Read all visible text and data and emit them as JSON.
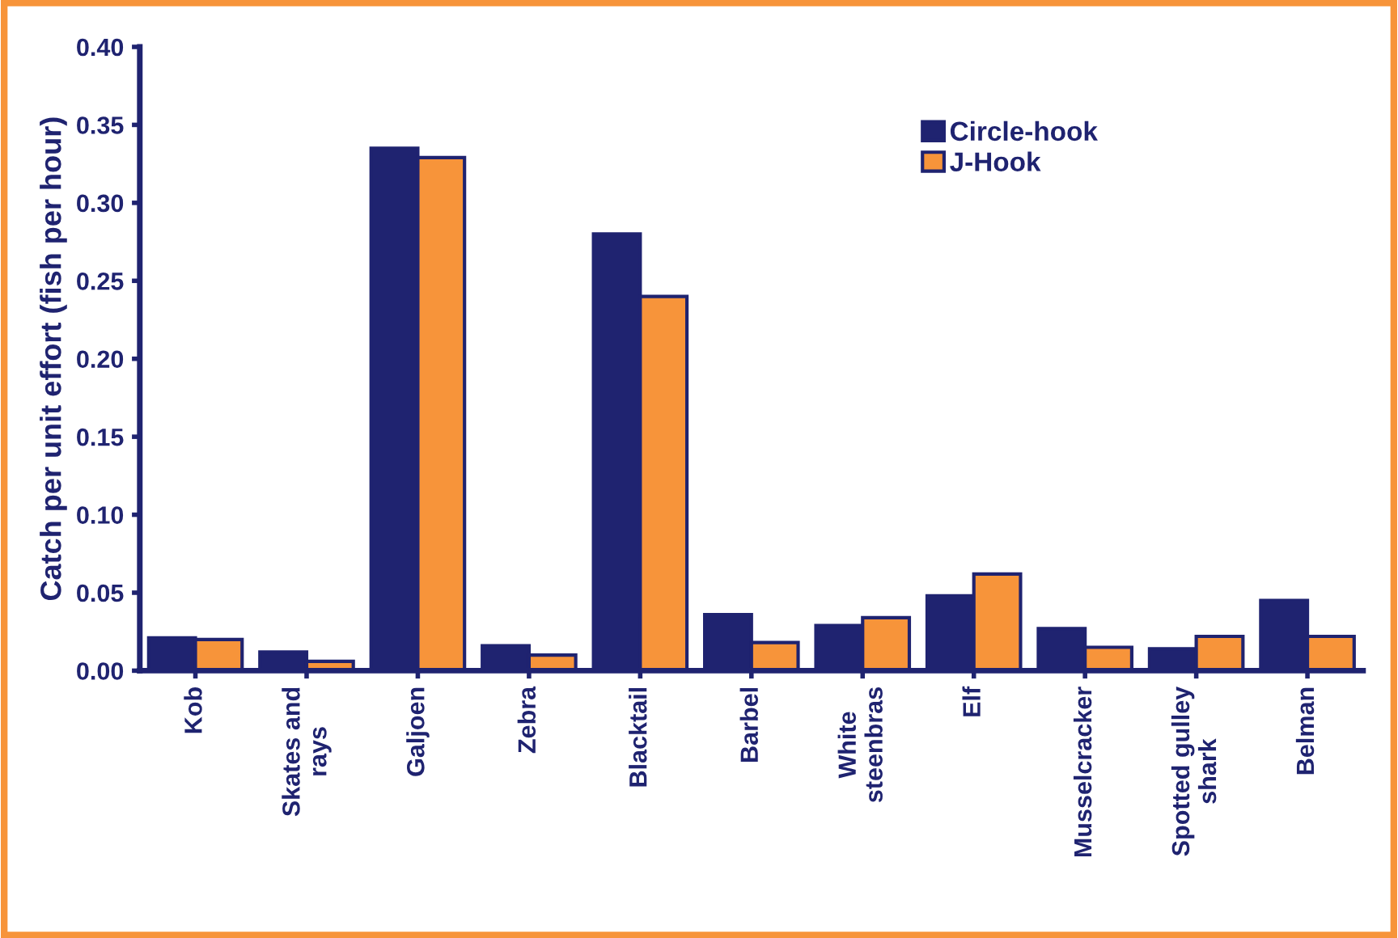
{
  "chart_data": {
    "type": "bar",
    "ylabel": "Catch per unit effort (fish per hour)",
    "categories": [
      "Kob",
      "Skates and\nrays",
      "Galjoen",
      "Zebra",
      "Blacktail",
      "Barbel",
      "White\nsteenbras",
      "Elf",
      "Musselcracker",
      "Spotted gulley\nshark",
      "Belman"
    ],
    "series": [
      {
        "name": "Circle-hook",
        "color": "#1f2370",
        "values": [
          0.021,
          0.012,
          0.335,
          0.016,
          0.28,
          0.036,
          0.029,
          0.048,
          0.027,
          0.014,
          0.045
        ]
      },
      {
        "name": "J-Hook",
        "color": "#f7943a",
        "values": [
          0.02,
          0.006,
          0.329,
          0.01,
          0.24,
          0.018,
          0.034,
          0.062,
          0.015,
          0.022,
          0.022
        ]
      }
    ],
    "ylim": [
      0,
      0.4
    ],
    "yticks": [
      {
        "value": 0,
        "label": "0.00"
      },
      {
        "value": 0.05,
        "label": "0.05"
      },
      {
        "value": 0.1,
        "label": "0.10"
      },
      {
        "value": 0.15,
        "label": "0.15"
      },
      {
        "value": 0.2,
        "label": "0.20"
      },
      {
        "value": 0.25,
        "label": "0.25"
      },
      {
        "value": 0.3,
        "label": "0.30"
      },
      {
        "value": 0.35,
        "label": "0.35"
      },
      {
        "value": 0.4,
        "label": "0.40"
      }
    ],
    "grid": false,
    "legend": "top right"
  }
}
